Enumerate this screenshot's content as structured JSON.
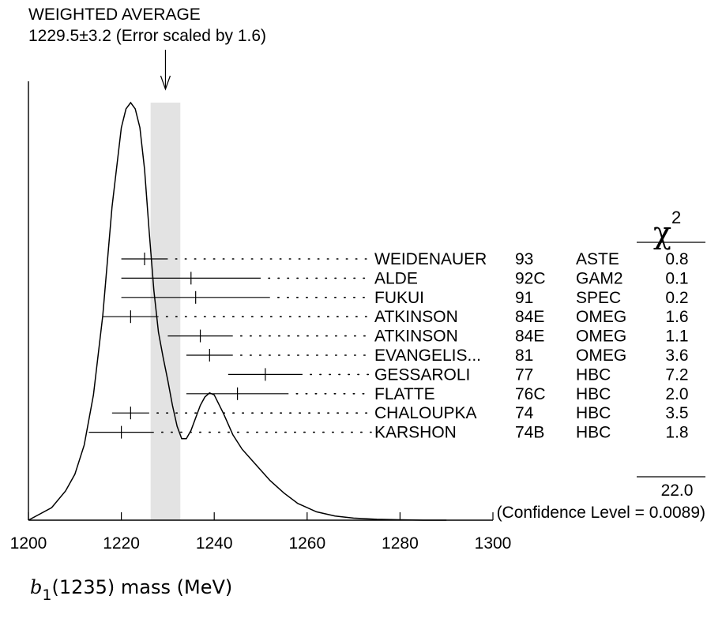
{
  "chart_data": {
    "type": "scatter",
    "title": "WEIGHTED AVERAGE",
    "subtitle": "1229.5±3.2 (Error scaled by 1.6)",
    "weighted_average": {
      "value": 1229.5,
      "error": 3.2,
      "scale_factor": 1.6
    },
    "xlabel": {
      "symbol": "b",
      "subscript": "1",
      "text": "(1235) mass (MeV)"
    },
    "xlim": [
      1200,
      1300
    ],
    "x_ticks": [
      1200,
      1220,
      1240,
      1260,
      1280,
      1300
    ],
    "chi2_header": {
      "symbol": "χ",
      "superscript": "2"
    },
    "measurements": [
      {
        "name": "WEIDENAUER",
        "year": "93",
        "technique": "ASTE",
        "value": 1225,
        "low": 1220,
        "high": 1230,
        "chi2": "0.8"
      },
      {
        "name": "ALDE",
        "year": "92C",
        "technique": "GAM2",
        "value": 1235,
        "low": 1220,
        "high": 1250,
        "chi2": "0.1"
      },
      {
        "name": "FUKUI",
        "year": "91",
        "technique": "SPEC",
        "value": 1236,
        "low": 1220,
        "high": 1252,
        "chi2": "0.2"
      },
      {
        "name": "ATKINSON",
        "year": "84E",
        "technique": "OMEG",
        "value": 1222,
        "low": 1216,
        "high": 1228,
        "chi2": "1.6"
      },
      {
        "name": "ATKINSON",
        "year": "84E",
        "technique": "OMEG",
        "value": 1237,
        "low": 1230,
        "high": 1244,
        "chi2": "1.1"
      },
      {
        "name": "EVANGELIS...",
        "year": "81",
        "technique": "OMEG",
        "value": 1239,
        "low": 1234,
        "high": 1244,
        "chi2": "3.6"
      },
      {
        "name": "GESSAROLI",
        "year": "77",
        "technique": "HBC",
        "value": 1251,
        "low": 1243,
        "high": 1259,
        "chi2": "7.2"
      },
      {
        "name": "FLATTE",
        "year": "76C",
        "technique": "HBC",
        "value": 1245,
        "low": 1234,
        "high": 1256,
        "chi2": "2.0"
      },
      {
        "name": "CHALOUPKA",
        "year": "74",
        "technique": "HBC",
        "value": 1222,
        "low": 1218,
        "high": 1226,
        "chi2": "3.5"
      },
      {
        "name": "KARSHON",
        "year": "74B",
        "technique": "HBC",
        "value": 1220,
        "low": 1213,
        "high": 1227,
        "chi2": "1.8"
      }
    ],
    "chi2_total": "22.0",
    "confidence_level": "(Confidence Level = 0.0089)",
    "ideogram": {
      "x": [
        1200,
        1205,
        1208,
        1210,
        1212,
        1214,
        1216,
        1218,
        1220,
        1221,
        1222,
        1223,
        1224,
        1225,
        1226,
        1227,
        1228,
        1229,
        1230,
        1231,
        1232,
        1233,
        1234,
        1235,
        1236,
        1237,
        1238,
        1239,
        1240,
        1242,
        1244,
        1246,
        1248,
        1250,
        1252,
        1255,
        1258,
        1262,
        1266,
        1270,
        1275,
        1280,
        1285,
        1290
      ],
      "y": [
        0.0,
        0.03,
        0.07,
        0.11,
        0.18,
        0.3,
        0.49,
        0.75,
        0.94,
        0.985,
        1.0,
        0.985,
        0.94,
        0.84,
        0.69,
        0.55,
        0.45,
        0.39,
        0.335,
        0.275,
        0.225,
        0.195,
        0.195,
        0.215,
        0.245,
        0.275,
        0.295,
        0.305,
        0.3,
        0.255,
        0.205,
        0.17,
        0.145,
        0.12,
        0.095,
        0.065,
        0.04,
        0.02,
        0.01,
        0.005,
        0.002,
        0.001,
        0.0,
        0.0
      ]
    }
  }
}
